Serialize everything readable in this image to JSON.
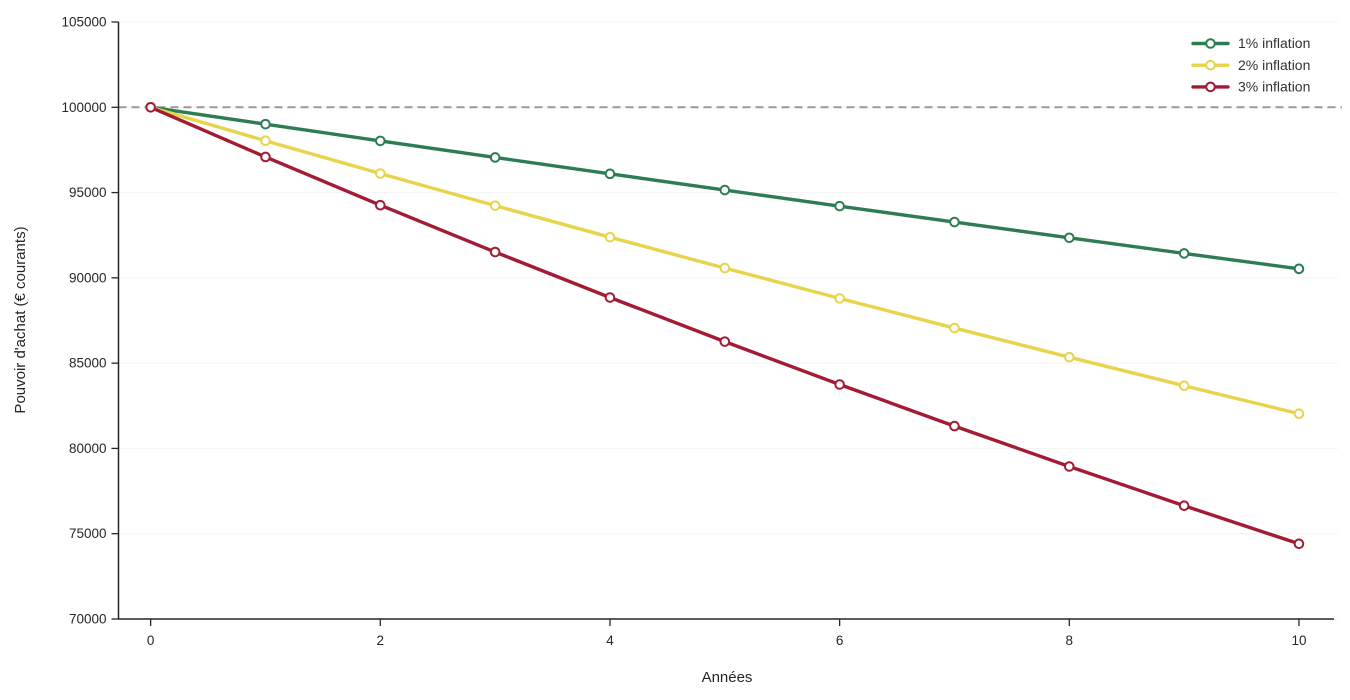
{
  "chart_data": {
    "type": "line",
    "title": "",
    "xlabel": "Années",
    "ylabel": "Pouvoir d'achat (€ courants)",
    "x": [
      0,
      1,
      2,
      3,
      4,
      5,
      6,
      7,
      8,
      9,
      10
    ],
    "series": [
      {
        "name": "1% inflation",
        "color": "#2e7d52",
        "values": [
          100000,
          99010,
          98030,
          97059,
          96098,
          95147,
          94205,
          93272,
          92348,
          91434,
          90529
        ]
      },
      {
        "name": "2% inflation",
        "color": "#e8d44b",
        "values": [
          100000,
          98039,
          96117,
          94232,
          92385,
          90573,
          88797,
          87056,
          85349,
          83676,
          82035
        ]
      },
      {
        "name": "3% inflation",
        "color": "#a21c35",
        "values": [
          100000,
          97087,
          94260,
          91514,
          88849,
          86261,
          83748,
          81309,
          78941,
          76642,
          74409
        ]
      }
    ],
    "xticks": [
      0,
      2,
      4,
      6,
      8,
      10
    ],
    "yticks": [
      70000,
      75000,
      80000,
      85000,
      90000,
      95000,
      100000,
      105000
    ],
    "xlim": [
      -0.28,
      10.34
    ],
    "ylim": [
      70000,
      105000
    ],
    "reference_line": {
      "value": 100000,
      "style": "dashed",
      "color": "#9a9a9a"
    },
    "grid": {
      "horizontal": true,
      "vertical": false,
      "color": "#f5f5f5"
    },
    "legend": {
      "position": "upper-right",
      "frame": false
    },
    "marker": "open-circle",
    "marker_fill": "#ffffff",
    "axis_color": "#262626",
    "line_width": 3.4
  }
}
